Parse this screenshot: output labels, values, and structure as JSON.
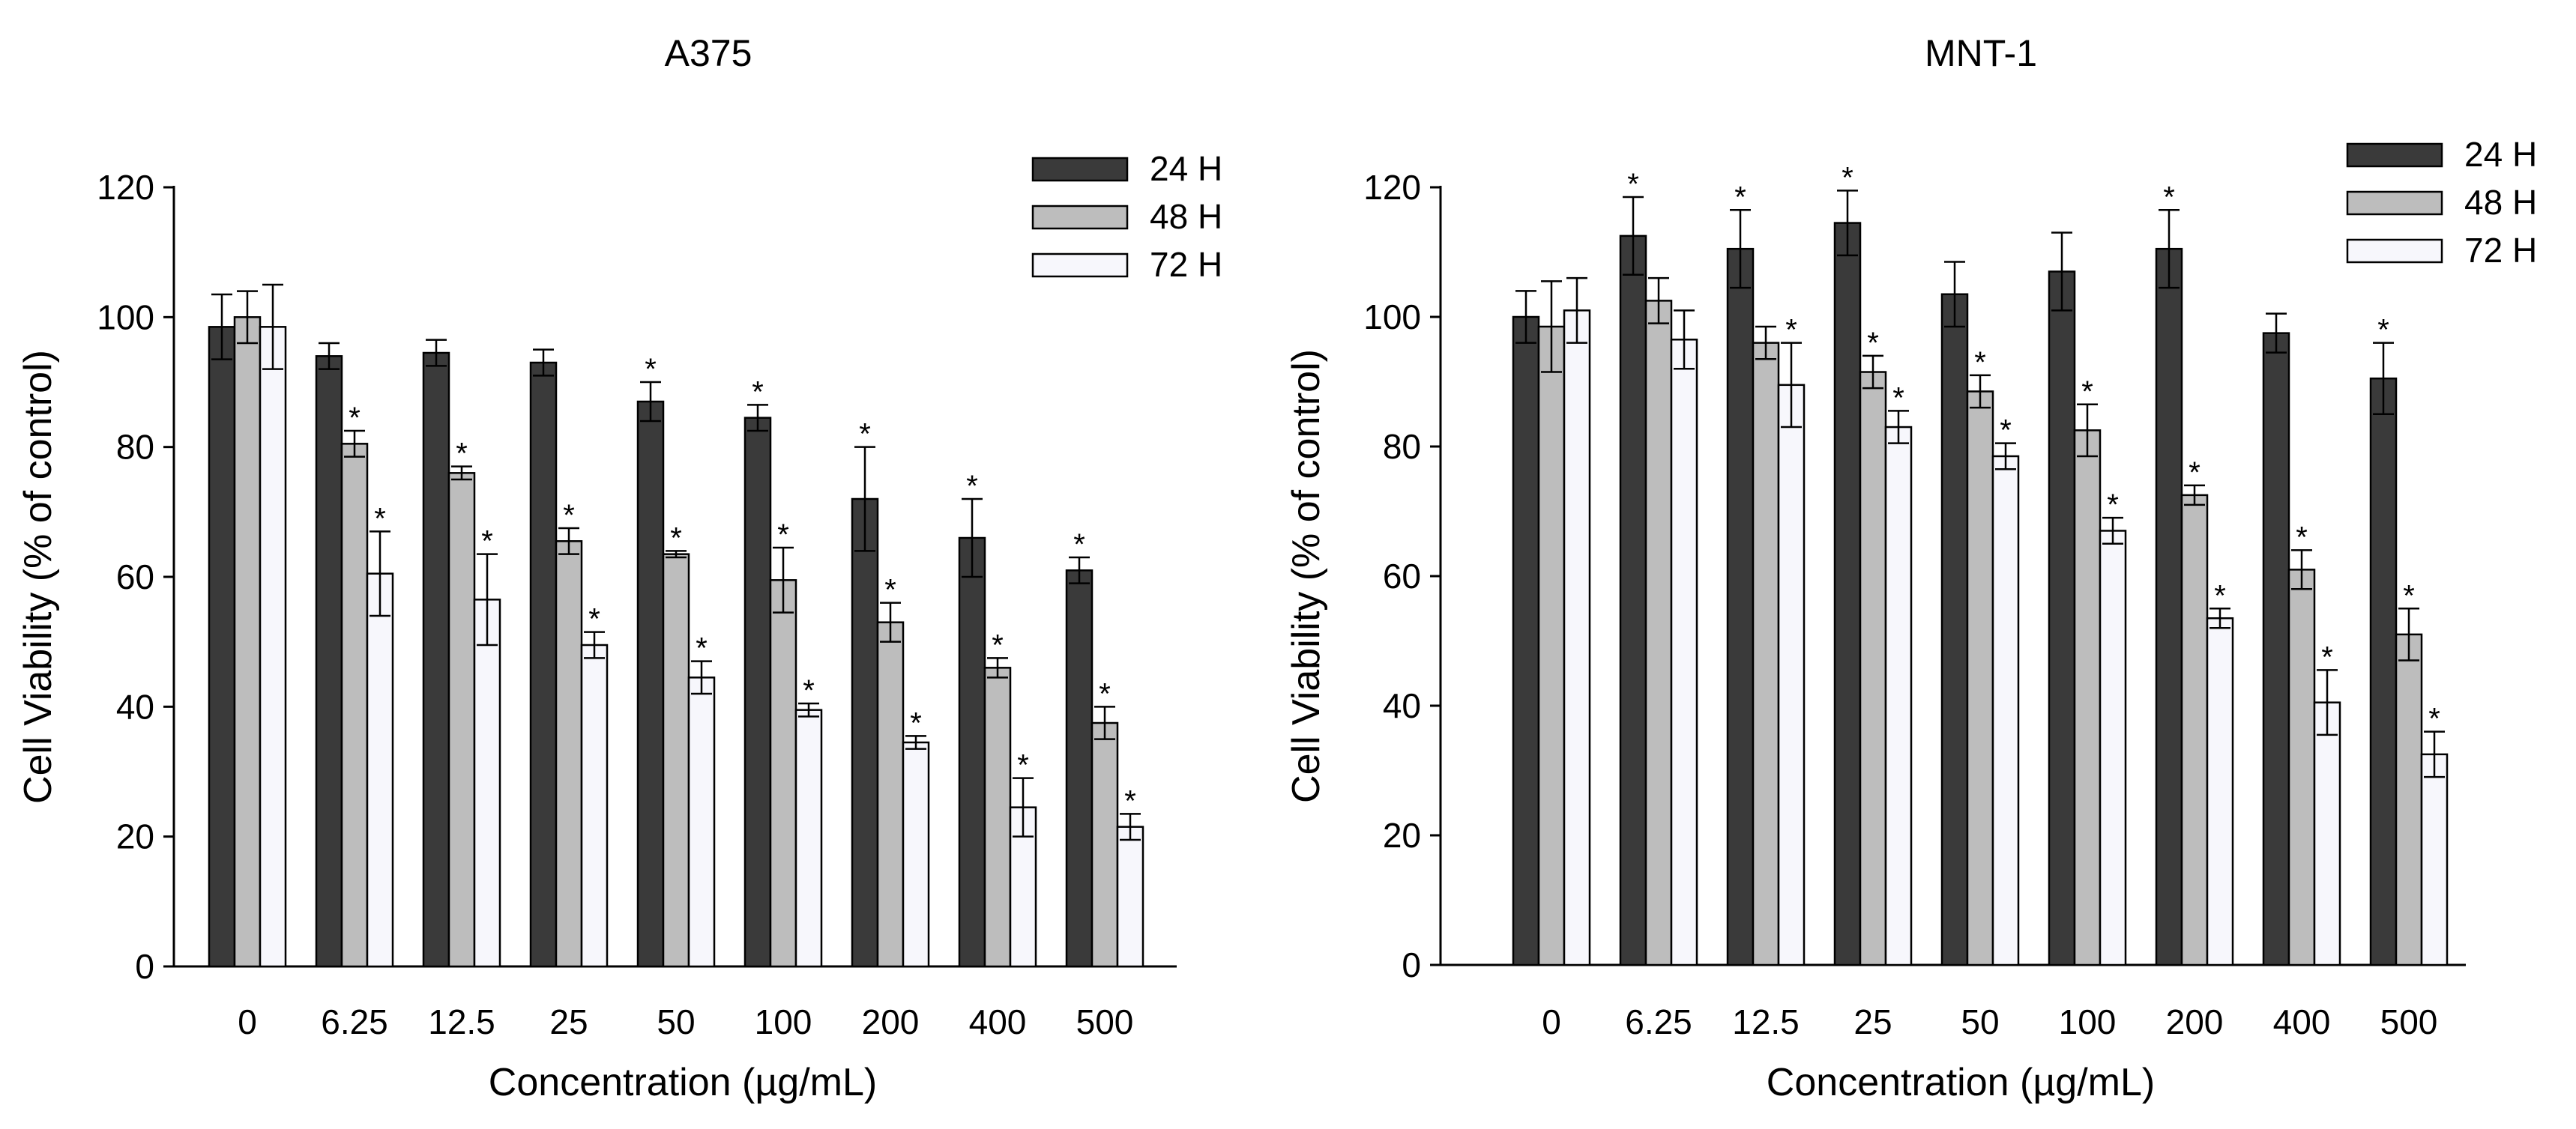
{
  "chart_data": [
    {
      "type": "bar",
      "title": "A375",
      "xlabel": "Concentration (µg/mL)",
      "ylabel": "Cell Viability (% of control)",
      "ylim": [
        0,
        120
      ],
      "yticks": [
        0,
        20,
        40,
        60,
        80,
        100,
        120
      ],
      "categories": [
        "0",
        "6.25",
        "12.5",
        "25",
        "50",
        "100",
        "200",
        "400",
        "500"
      ],
      "legend_position": "top-right",
      "series": [
        {
          "name": "24 H",
          "color": "#3a3a3a",
          "values": [
            98.5,
            94,
            94.5,
            93,
            87,
            84.5,
            72,
            66,
            61
          ],
          "errors": [
            5,
            2,
            2,
            2,
            3,
            2,
            8,
            6,
            2
          ],
          "significant": [
            false,
            false,
            false,
            false,
            true,
            true,
            true,
            true,
            true
          ]
        },
        {
          "name": "48 H",
          "color": "#bdbdbd",
          "values": [
            100,
            80.5,
            76,
            65.5,
            63.5,
            59.5,
            53,
            46,
            37.5
          ],
          "errors": [
            4,
            2,
            1,
            2,
            0.5,
            5,
            3,
            1.5,
            2.5
          ],
          "significant": [
            false,
            true,
            true,
            true,
            true,
            true,
            true,
            true,
            true
          ]
        },
        {
          "name": "72 H",
          "color": "#f7f7fc",
          "values": [
            98.5,
            60.5,
            56.5,
            49.5,
            44.5,
            39.5,
            34.5,
            24.5,
            21.5
          ],
          "errors": [
            6.5,
            6.5,
            7,
            2,
            2.5,
            1,
            1,
            4.5,
            2
          ],
          "significant": [
            false,
            true,
            true,
            true,
            true,
            true,
            true,
            true,
            true
          ]
        }
      ]
    },
    {
      "type": "bar",
      "title": "MNT-1",
      "xlabel": "Concentration (µg/mL)",
      "ylabel": "Cell Viability (% of control)",
      "ylim": [
        0,
        120
      ],
      "yticks": [
        0,
        20,
        40,
        60,
        80,
        100,
        120
      ],
      "categories": [
        "0",
        "6.25",
        "12.5",
        "25",
        "50",
        "100",
        "200",
        "400",
        "500"
      ],
      "legend_position": "top-right",
      "series": [
        {
          "name": "24 H",
          "color": "#3a3a3a",
          "values": [
            100,
            112.5,
            110.5,
            114.5,
            103.5,
            107,
            110.5,
            97.5,
            90.5
          ],
          "errors": [
            4,
            6,
            6,
            5,
            5,
            6,
            6,
            3,
            5.5
          ],
          "significant": [
            false,
            true,
            true,
            true,
            false,
            false,
            true,
            false,
            true
          ]
        },
        {
          "name": "48 H",
          "color": "#bdbdbd",
          "values": [
            98.5,
            102.5,
            96,
            91.5,
            88.5,
            82.5,
            72.5,
            61,
            51
          ],
          "errors": [
            7,
            3.5,
            2.5,
            2.5,
            2.5,
            4,
            1.5,
            3,
            4
          ],
          "significant": [
            false,
            false,
            false,
            true,
            true,
            true,
            true,
            true,
            true
          ]
        },
        {
          "name": "72 H",
          "color": "#f7f7fc",
          "values": [
            101,
            96.5,
            89.5,
            83,
            78.5,
            67,
            53.5,
            40.5,
            32.5
          ],
          "errors": [
            5,
            4.5,
            6.5,
            2.5,
            2,
            2,
            1.5,
            5,
            3.5
          ],
          "significant": [
            false,
            false,
            true,
            true,
            true,
            true,
            true,
            true,
            true
          ]
        }
      ]
    }
  ]
}
